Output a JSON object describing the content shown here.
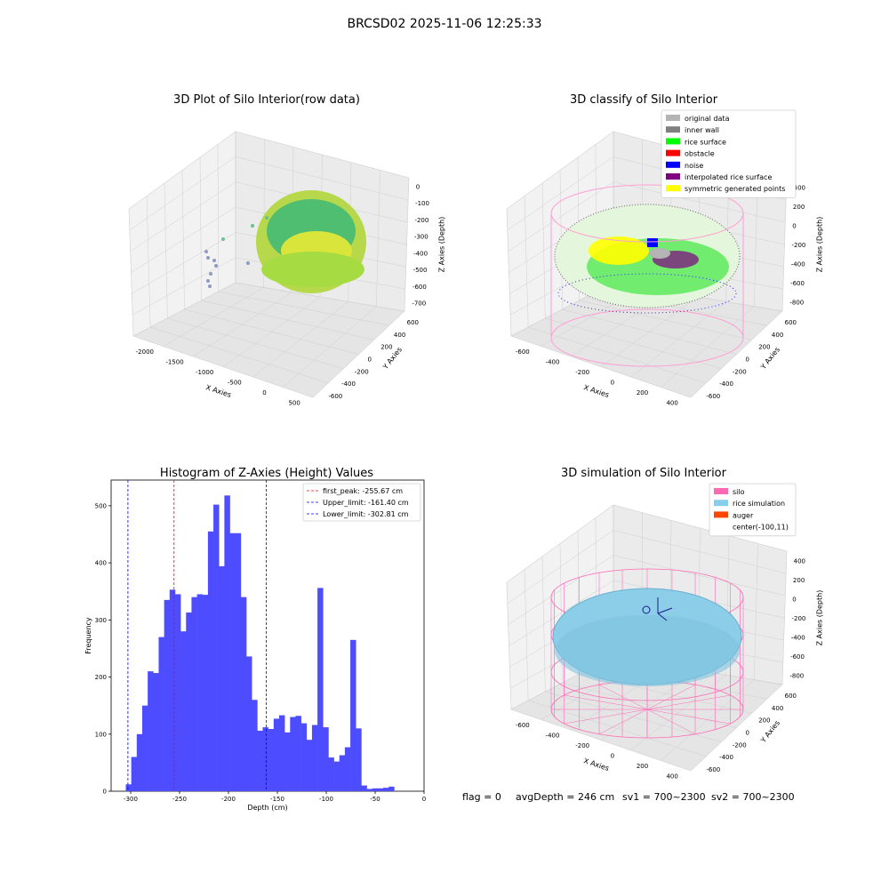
{
  "suptitle": "BRCSD02 2025-11-06 12:25:33",
  "panels": {
    "raw": {
      "title": "3D Plot of Silo Interior(row data)",
      "xlabel": "X Axies",
      "ylabel": "Y Axies",
      "zlabel": "Z Axies (Depth)",
      "xticks": [
        "-2000",
        "-1500",
        "-1000",
        "-500",
        "0",
        "500"
      ],
      "yticks": [
        "-600",
        "-400",
        "-200",
        "0",
        "200",
        "400",
        "600"
      ],
      "zticks": [
        "0",
        "-100",
        "-200",
        "-300",
        "-400",
        "-500",
        "-600",
        "-700"
      ]
    },
    "classify": {
      "title": "3D classify of Silo Interior",
      "xlabel": "X Axies",
      "ylabel": "Y Axies",
      "zlabel": "Z Axies (Depth)",
      "xticks": [
        "-600",
        "-400",
        "-200",
        "0",
        "200",
        "400"
      ],
      "yticks": [
        "-600",
        "-400",
        "-200",
        "0",
        "200",
        "400",
        "600"
      ],
      "zticks": [
        "400",
        "200",
        "0",
        "-200",
        "-400",
        "-600",
        "-800"
      ],
      "legend": [
        {
          "label": "original data",
          "color": "#b4b4b4"
        },
        {
          "label": "inner wall",
          "color": "#808080"
        },
        {
          "label": "rice surface",
          "color": "#00ff00"
        },
        {
          "label": "obstacle",
          "color": "#ff0000"
        },
        {
          "label": "noise",
          "color": "#0000ff"
        },
        {
          "label": "interpolated rice surface",
          "color": "#800080"
        },
        {
          "label": "symmetric generated points",
          "color": "#ffff00"
        }
      ]
    },
    "simulation": {
      "title": "3D simulation of Silo Interior",
      "xlabel": "X Axies",
      "ylabel": "Y Axies",
      "zlabel": "Z Axies (Depth)",
      "xticks": [
        "-600",
        "-400",
        "-200",
        "0",
        "200",
        "400"
      ],
      "yticks": [
        "-600",
        "-400",
        "-200",
        "0",
        "200",
        "400",
        "600"
      ],
      "zticks": [
        "400",
        "200",
        "0",
        "-200",
        "-400",
        "-600",
        "-800"
      ],
      "legend": [
        {
          "label": "silo",
          "color": "#ff69b4"
        },
        {
          "label": "rice simulation",
          "color": "#87ceeb"
        },
        {
          "label": "auger",
          "color": "#ff4500"
        },
        {
          "label": "center(-100,11)",
          "color": "none"
        }
      ]
    }
  },
  "chart_data": {
    "type": "bar",
    "title": "Histogram of Z-Axies (Height) Values",
    "xlabel": "Depth (cm)",
    "ylabel": "Frequency",
    "xlim": [
      -320,
      0
    ],
    "ylim": [
      0,
      545
    ],
    "xticks": [
      -300,
      -250,
      -200,
      -150,
      -100,
      -50,
      0
    ],
    "yticks": [
      0,
      100,
      200,
      300,
      400,
      500
    ],
    "bin_width": 5.6,
    "bins_start": -305,
    "values": [
      12,
      60,
      100,
      150,
      210,
      207,
      270,
      335,
      353,
      345,
      280,
      313,
      340,
      345,
      344,
      455,
      502,
      394,
      518,
      452,
      452,
      340,
      236,
      160,
      106,
      112,
      109,
      127,
      133,
      103,
      130,
      132,
      119,
      90,
      116,
      356,
      112,
      59,
      52,
      63,
      77,
      265,
      110,
      10,
      4,
      5,
      5,
      6,
      8
    ],
    "bar_color": "#4d4dff",
    "vlines": [
      {
        "label": "first_peak: -255.67 cm",
        "x": -255.67,
        "color": "#ff0000"
      },
      {
        "label": "Upper_limit: -161.40 cm",
        "x": -161.4,
        "color": "#0000ff"
      },
      {
        "label": "Lower_limit: -302.81 cm",
        "x": -302.81,
        "color": "#0000ff"
      }
    ],
    "legend_position": "top-right"
  },
  "status": {
    "flag": "flag = 0",
    "avg": "avgDepth = 246 cm",
    "sv1": "sv1 = 700~2300",
    "sv2": "sv2 = 700~2300"
  }
}
